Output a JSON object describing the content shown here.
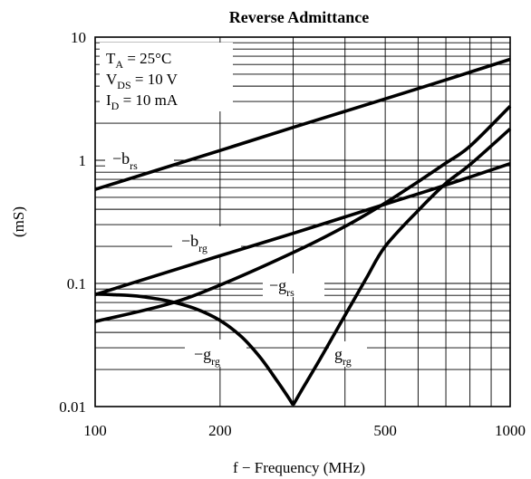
{
  "chart_data": {
    "type": "line",
    "title": "Reverse Admittance",
    "xlabel": "f − Frequency (MHz)",
    "ylabel": "(mS)",
    "x_scale": "log",
    "y_scale": "log",
    "xlim": [
      100,
      1000
    ],
    "ylim": [
      0.01,
      10
    ],
    "grid": true,
    "x_ticks": [
      {
        "value": 100,
        "label": "100"
      },
      {
        "value": 200,
        "label": "200"
      },
      {
        "value": 500,
        "label": "500"
      },
      {
        "value": 1000,
        "label": "1000"
      }
    ],
    "y_ticks": [
      {
        "value": 10,
        "label": "10"
      },
      {
        "value": 1,
        "label": "1"
      },
      {
        "value": 0.1,
        "label": "0.1"
      },
      {
        "value": 0.01,
        "label": "0.01"
      }
    ],
    "conditions": [
      {
        "main": "T",
        "sub": "A",
        "rest": " = 25°C"
      },
      {
        "main": "V",
        "sub": "DS",
        "rest": " = 10 V"
      },
      {
        "main": "I",
        "sub": "D",
        "rest": " = 10 mA"
      }
    ],
    "series": [
      {
        "name": "−b_rs",
        "label_main": "−b",
        "label_sub": "rs",
        "x": [
          100,
          200,
          300,
          500,
          700,
          1000
        ],
        "y": [
          0.58,
          1.2,
          1.85,
          3.15,
          4.5,
          6.6
        ]
      },
      {
        "name": "−b_rg",
        "label_main": "−b",
        "label_sub": "rg",
        "x": [
          100,
          200,
          300,
          500,
          700,
          1000
        ],
        "y": [
          0.081,
          0.168,
          0.255,
          0.44,
          0.63,
          0.94
        ]
      },
      {
        "name": "−g_rs",
        "label_main": "−g",
        "label_sub": "rs",
        "x": [
          100,
          150,
          200,
          300,
          400,
          500,
          600,
          700,
          800,
          1000
        ],
        "y": [
          0.049,
          0.068,
          0.097,
          0.178,
          0.29,
          0.45,
          0.67,
          0.95,
          1.3,
          2.75
        ]
      },
      {
        "name": "−g_rg",
        "label_main": "−g",
        "label_sub": "rg",
        "x": [
          100,
          110,
          120,
          130,
          150,
          175,
          200,
          225,
          250,
          275,
          290,
          300
        ],
        "y": [
          0.082,
          0.081,
          0.08,
          0.078,
          0.072,
          0.062,
          0.05,
          0.037,
          0.025,
          0.016,
          0.0123,
          0.0103
        ]
      },
      {
        "name": "g_rg",
        "label_main": "g",
        "label_sub": "rg",
        "x": [
          300,
          320,
          350,
          400,
          450,
          500,
          600,
          700,
          800,
          1000
        ],
        "y": [
          0.0103,
          0.015,
          0.025,
          0.055,
          0.11,
          0.2,
          0.39,
          0.65,
          0.92,
          1.8
        ]
      }
    ]
  }
}
